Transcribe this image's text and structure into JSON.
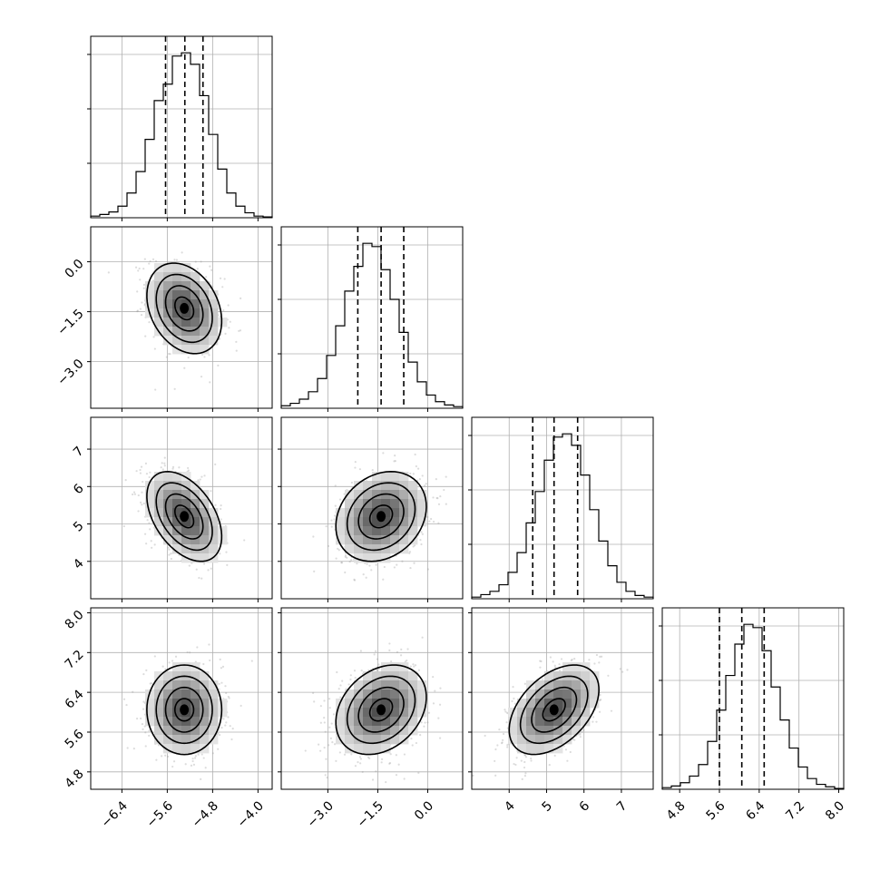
{
  "chart_data": {
    "type": "corner",
    "grid": true,
    "parameters": [
      {
        "range": [
          -6.95,
          -3.75
        ],
        "ticks": [
          -6.4,
          -5.6,
          -4.8,
          -4.0
        ],
        "tick_labels": [
          "−6.4",
          "−5.6",
          "−4.8",
          "−4.0"
        ],
        "quantiles": [
          -5.63,
          -5.29,
          -4.97
        ],
        "mean": -5.3,
        "std": 0.33,
        "hist_edges_start": -6.95,
        "hist_bin_width": 0.16,
        "hist_counts": [
          2,
          4,
          7,
          14,
          30,
          56,
          95,
          142,
          162,
          196,
          200,
          186,
          148,
          101,
          59,
          30,
          14,
          6,
          2,
          1
        ]
      },
      {
        "range": [
          -4.4,
          1.05
        ],
        "ticks": [
          -3.0,
          -1.5,
          0.0
        ],
        "tick_labels": [
          "−3.0",
          "−1.5",
          "0.0"
        ],
        "quantiles": [
          -2.1,
          -1.4,
          -0.72
        ],
        "mean": -1.4,
        "std": 0.68,
        "hist_edges_start": -4.4,
        "hist_bin_width": 0.2725,
        "hist_counts": [
          3,
          6,
          11,
          20,
          36,
          64,
          100,
          142,
          172,
          200,
          196,
          168,
          132,
          92,
          56,
          32,
          16,
          8,
          4,
          2
        ]
      },
      {
        "range": [
          3.0,
          7.85
        ],
        "ticks": [
          4,
          5,
          6,
          7
        ],
        "tick_labels": [
          "4",
          "5",
          "6",
          "7"
        ],
        "quantiles": [
          4.63,
          5.2,
          5.83
        ],
        "mean": 5.2,
        "std": 0.6,
        "hist_edges_start": 3.0,
        "hist_bin_width": 0.2425,
        "hist_counts": [
          2,
          5,
          9,
          17,
          32,
          56,
          92,
          130,
          168,
          196,
          200,
          186,
          150,
          108,
          70,
          40,
          20,
          9,
          4,
          2
        ]
      },
      {
        "range": [
          4.45,
          8.1
        ],
        "ticks": [
          4.8,
          5.6,
          6.4,
          7.2,
          8.0
        ],
        "tick_labels": [
          "4.8",
          "5.6",
          "6.4",
          "7.2",
          "8.0"
        ],
        "quantiles": [
          5.6,
          6.05,
          6.5
        ],
        "mean": 6.05,
        "std": 0.45,
        "hist_edges_start": 4.45,
        "hist_bin_width": 0.1825,
        "hist_counts": [
          2,
          4,
          8,
          16,
          30,
          58,
          96,
          138,
          176,
          200,
          196,
          168,
          124,
          84,
          50,
          27,
          13,
          6,
          3,
          1
        ]
      }
    ],
    "correlations": {
      "1-0": -0.28,
      "2-0": -0.45,
      "2-1": 0.22,
      "3-0": 0.0,
      "3-1": 0.28,
      "3-2": 0.45
    }
  }
}
